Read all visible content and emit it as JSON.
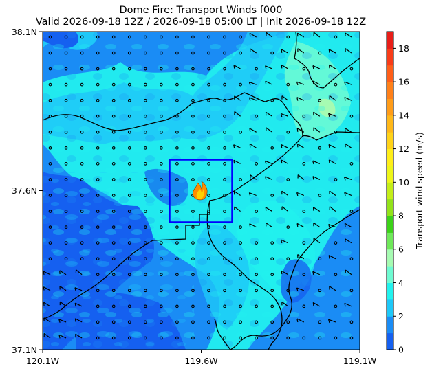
{
  "chart_data": {
    "type": "heatmap",
    "title": "Dome Fire: Transport Winds f000",
    "subtitle": "Valid 2026-09-18 12Z / 2026-09-18 05:00 LT | Init 2026-09-18 12Z",
    "xlabel": "",
    "ylabel": "",
    "x_ticks": [
      "120.1W",
      "119.6W",
      "119.1W"
    ],
    "y_ticks": [
      "38.1N",
      "37.6N",
      "37.1N"
    ],
    "xlim": [
      -120.1,
      -119.1
    ],
    "ylim": [
      37.1,
      38.1
    ],
    "colorbar": {
      "label": "Transport wind speed (m/s)",
      "range": [
        0,
        19
      ],
      "ticks": [
        0,
        2,
        4,
        6,
        8,
        10,
        12,
        14,
        16,
        18
      ],
      "levels": [
        {
          "from": 0,
          "to": 1,
          "color": "#1560f0"
        },
        {
          "from": 1,
          "to": 2,
          "color": "#1a8cf5"
        },
        {
          "from": 2,
          "to": 3,
          "color": "#1ec8f8"
        },
        {
          "from": 3,
          "to": 4,
          "color": "#22f2ee"
        },
        {
          "from": 4,
          "to": 5,
          "color": "#6ffbd2"
        },
        {
          "from": 5,
          "to": 6,
          "color": "#a6fbb2"
        },
        {
          "from": 6,
          "to": 7,
          "color": "#6fe85a"
        },
        {
          "from": 7,
          "to": 8,
          "color": "#3cd219"
        },
        {
          "from": 8,
          "to": 9,
          "color": "#93e21a"
        },
        {
          "from": 9,
          "to": 10,
          "color": "#c4ee18"
        },
        {
          "from": 10,
          "to": 11,
          "color": "#eef618"
        },
        {
          "from": 11,
          "to": 12,
          "color": "#ffee18"
        },
        {
          "from": 12,
          "to": 13,
          "color": "#ffd318"
        },
        {
          "from": 13,
          "to": 14,
          "color": "#ffb818"
        },
        {
          "from": 14,
          "to": 15,
          "color": "#ff9c18"
        },
        {
          "from": 15,
          "to": 16,
          "color": "#ff8018"
        },
        {
          "from": 16,
          "to": 17,
          "color": "#ff5e18"
        },
        {
          "from": 17,
          "to": 18,
          "color": "#f83c18"
        },
        {
          "from": 18,
          "to": 19,
          "color": "#e81e18"
        }
      ]
    },
    "domain_box": {
      "lon": [
        -119.7,
        -119.5
      ],
      "lat": [
        37.5,
        37.7
      ],
      "color": "#0000ff"
    },
    "fire_location": {
      "lon": -119.605,
      "lat": 37.595
    },
    "grid": false,
    "wind_barbs": true
  }
}
